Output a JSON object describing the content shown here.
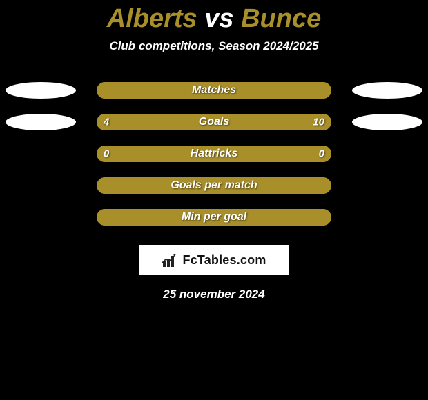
{
  "background_color": "#000000",
  "title": {
    "player1": "Alberts",
    "vs": "vs",
    "player2": "Bunce",
    "player1_color": "#a88f2a",
    "vs_color": "#ffffff",
    "player2_color": "#a88f2a",
    "fontsize": 38
  },
  "subtitle": {
    "text": "Club competitions, Season 2024/2025",
    "color": "#ffffff",
    "fontsize": 17
  },
  "bar_style": {
    "track_width": 340,
    "track_height": 24,
    "border_radius": 12,
    "left_fill_color": "#a88f2a",
    "right_fill_color": "#a88f2a",
    "track_bg_color": "#a88f2a",
    "label_color": "#ffffff",
    "value_color": "#ffffff",
    "label_fontsize": 16
  },
  "ellipse_style": {
    "width": 102,
    "height": 24,
    "color": "#ffffff"
  },
  "rows": [
    {
      "label": "Matches",
      "left_value": null,
      "right_value": null,
      "left_pct": 50,
      "right_pct": 50,
      "show_left_ellipse": true,
      "show_right_ellipse": true
    },
    {
      "label": "Goals",
      "left_value": "4",
      "right_value": "10",
      "left_pct": 28,
      "right_pct": 72,
      "show_left_ellipse": true,
      "show_right_ellipse": true
    },
    {
      "label": "Hattricks",
      "left_value": "0",
      "right_value": "0",
      "left_pct": 50,
      "right_pct": 50,
      "show_left_ellipse": false,
      "show_right_ellipse": false
    },
    {
      "label": "Goals per match",
      "left_value": null,
      "right_value": null,
      "left_pct": 50,
      "right_pct": 50,
      "show_left_ellipse": false,
      "show_right_ellipse": false
    },
    {
      "label": "Min per goal",
      "left_value": null,
      "right_value": null,
      "left_pct": 50,
      "right_pct": 50,
      "show_left_ellipse": false,
      "show_right_ellipse": false
    }
  ],
  "brand": {
    "text": "FcTables.com",
    "box_bg": "#ffffff",
    "text_color": "#111111",
    "icon_color": "#222222"
  },
  "date": {
    "text": "25 november 2024",
    "color": "#ffffff"
  }
}
